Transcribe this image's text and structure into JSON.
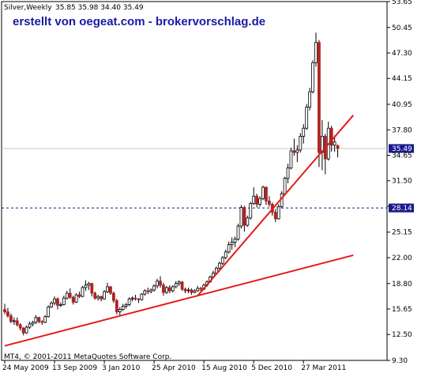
{
  "chart_data": {
    "type": "candlestick",
    "title": "Silver,Weekly",
    "ohlc_readout": "35.85 35.98 34.40 35.49",
    "watermark": "erstellt von oegeat.com - brokervorschlag.de",
    "copyright": "MT4, © 2001-2011 MetaQuotes Software Corp.",
    "y_range": [
      9.3,
      53.65
    ],
    "y_ticks": [
      "53.65",
      "50.45",
      "47.30",
      "44.15",
      "40.95",
      "37.80",
      "34.65",
      "31.50",
      "28.35",
      "25.15",
      "22.00",
      "18.80",
      "15.65",
      "12.50",
      "9.30"
    ],
    "x_ticks": [
      "24 May 2009",
      "13 Sep 2009",
      "3 Jan 2010",
      "25 Apr 2010",
      "15 Aug 2010",
      "5 Dec 2010",
      "27 Mar 2011"
    ],
    "current_price": "35.49",
    "level_line": "28.14",
    "candles": [
      {
        "date": "2009-05-24",
        "o": 15.6,
        "h": 16.3,
        "l": 15.0,
        "c": 15.3
      },
      {
        "date": "2009-05-31",
        "o": 15.3,
        "h": 15.8,
        "l": 14.6,
        "c": 14.8
      },
      {
        "date": "2009-06-07",
        "o": 14.8,
        "h": 15.1,
        "l": 13.9,
        "c": 14.1
      },
      {
        "date": "2009-06-14",
        "o": 14.1,
        "h": 14.6,
        "l": 13.7,
        "c": 14.2
      },
      {
        "date": "2009-06-21",
        "o": 14.2,
        "h": 14.6,
        "l": 13.5,
        "c": 13.7
      },
      {
        "date": "2009-06-28",
        "o": 13.7,
        "h": 13.9,
        "l": 13.0,
        "c": 13.3
      },
      {
        "date": "2009-07-05",
        "o": 13.3,
        "h": 13.4,
        "l": 12.4,
        "c": 12.7
      },
      {
        "date": "2009-07-12",
        "o": 12.7,
        "h": 13.6,
        "l": 12.6,
        "c": 13.4
      },
      {
        "date": "2009-07-19",
        "o": 13.4,
        "h": 14.1,
        "l": 13.2,
        "c": 13.8
      },
      {
        "date": "2009-07-26",
        "o": 13.8,
        "h": 14.2,
        "l": 13.5,
        "c": 14.0
      },
      {
        "date": "2009-08-02",
        "o": 14.0,
        "h": 14.9,
        "l": 13.8,
        "c": 14.6
      },
      {
        "date": "2009-08-09",
        "o": 14.6,
        "h": 14.7,
        "l": 13.9,
        "c": 14.1
      },
      {
        "date": "2009-08-16",
        "o": 14.1,
        "h": 14.3,
        "l": 13.7,
        "c": 14.0
      },
      {
        "date": "2009-08-23",
        "o": 14.0,
        "h": 14.9,
        "l": 13.9,
        "c": 14.7
      },
      {
        "date": "2009-08-30",
        "o": 14.7,
        "h": 16.1,
        "l": 14.6,
        "c": 15.9
      },
      {
        "date": "2009-09-06",
        "o": 15.9,
        "h": 16.6,
        "l": 15.8,
        "c": 16.4
      },
      {
        "date": "2009-09-13",
        "o": 16.4,
        "h": 17.2,
        "l": 16.1,
        "c": 16.9
      },
      {
        "date": "2009-09-20",
        "o": 16.9,
        "h": 17.1,
        "l": 15.6,
        "c": 16.1
      },
      {
        "date": "2009-09-27",
        "o": 16.1,
        "h": 16.5,
        "l": 15.9,
        "c": 16.2
      },
      {
        "date": "2009-10-04",
        "o": 16.2,
        "h": 17.3,
        "l": 16.1,
        "c": 17.0
      },
      {
        "date": "2009-10-11",
        "o": 17.0,
        "h": 17.9,
        "l": 16.8,
        "c": 17.6
      },
      {
        "date": "2009-10-18",
        "o": 17.6,
        "h": 18.2,
        "l": 16.9,
        "c": 17.1
      },
      {
        "date": "2009-10-25",
        "o": 17.1,
        "h": 17.3,
        "l": 16.2,
        "c": 16.5
      },
      {
        "date": "2009-11-01",
        "o": 16.5,
        "h": 17.6,
        "l": 16.4,
        "c": 17.4
      },
      {
        "date": "2009-11-08",
        "o": 17.4,
        "h": 17.8,
        "l": 17.0,
        "c": 17.2
      },
      {
        "date": "2009-11-15",
        "o": 17.2,
        "h": 18.5,
        "l": 17.1,
        "c": 18.3
      },
      {
        "date": "2009-11-22",
        "o": 18.3,
        "h": 19.2,
        "l": 17.9,
        "c": 18.6
      },
      {
        "date": "2009-11-29",
        "o": 18.6,
        "h": 19.0,
        "l": 18.0,
        "c": 18.8
      },
      {
        "date": "2009-12-06",
        "o": 18.8,
        "h": 18.9,
        "l": 17.2,
        "c": 17.6
      },
      {
        "date": "2009-12-13",
        "o": 17.6,
        "h": 17.8,
        "l": 16.8,
        "c": 17.0
      },
      {
        "date": "2009-12-20",
        "o": 17.0,
        "h": 17.4,
        "l": 16.7,
        "c": 17.2
      },
      {
        "date": "2009-12-27",
        "o": 17.2,
        "h": 17.3,
        "l": 16.6,
        "c": 16.9
      },
      {
        "date": "2010-01-03",
        "o": 16.9,
        "h": 18.0,
        "l": 16.8,
        "c": 17.8
      },
      {
        "date": "2010-01-10",
        "o": 17.8,
        "h": 18.9,
        "l": 17.6,
        "c": 18.4
      },
      {
        "date": "2010-01-17",
        "o": 18.4,
        "h": 18.5,
        "l": 17.4,
        "c": 17.6
      },
      {
        "date": "2010-01-24",
        "o": 17.6,
        "h": 17.8,
        "l": 16.4,
        "c": 16.7
      },
      {
        "date": "2010-01-31",
        "o": 16.7,
        "h": 16.9,
        "l": 15.0,
        "c": 15.3
      },
      {
        "date": "2010-02-07",
        "o": 15.3,
        "h": 15.9,
        "l": 14.9,
        "c": 15.6
      },
      {
        "date": "2010-02-14",
        "o": 15.6,
        "h": 16.3,
        "l": 15.4,
        "c": 16.0
      },
      {
        "date": "2010-02-21",
        "o": 16.0,
        "h": 16.4,
        "l": 15.7,
        "c": 16.2
      },
      {
        "date": "2010-02-28",
        "o": 16.2,
        "h": 17.1,
        "l": 16.0,
        "c": 16.9
      },
      {
        "date": "2010-03-07",
        "o": 16.9,
        "h": 17.2,
        "l": 16.6,
        "c": 17.0
      },
      {
        "date": "2010-03-14",
        "o": 17.0,
        "h": 17.4,
        "l": 16.7,
        "c": 16.9
      },
      {
        "date": "2010-03-21",
        "o": 16.9,
        "h": 17.0,
        "l": 16.4,
        "c": 16.8
      },
      {
        "date": "2010-03-28",
        "o": 16.8,
        "h": 17.6,
        "l": 16.7,
        "c": 17.5
      },
      {
        "date": "2010-04-04",
        "o": 17.5,
        "h": 18.1,
        "l": 17.3,
        "c": 17.9
      },
      {
        "date": "2010-04-11",
        "o": 17.9,
        "h": 18.3,
        "l": 17.5,
        "c": 17.8
      },
      {
        "date": "2010-04-18",
        "o": 17.8,
        "h": 18.2,
        "l": 17.6,
        "c": 18.0
      },
      {
        "date": "2010-04-25",
        "o": 18.0,
        "h": 18.7,
        "l": 17.8,
        "c": 18.5
      },
      {
        "date": "2010-05-02",
        "o": 18.5,
        "h": 19.4,
        "l": 18.2,
        "c": 19.1
      },
      {
        "date": "2010-05-09",
        "o": 19.1,
        "h": 19.7,
        "l": 18.3,
        "c": 18.6
      },
      {
        "date": "2010-05-16",
        "o": 18.6,
        "h": 18.9,
        "l": 17.3,
        "c": 17.7
      },
      {
        "date": "2010-05-23",
        "o": 17.7,
        "h": 18.5,
        "l": 17.5,
        "c": 18.3
      },
      {
        "date": "2010-05-30",
        "o": 18.3,
        "h": 18.6,
        "l": 17.6,
        "c": 17.9
      },
      {
        "date": "2010-06-06",
        "o": 17.9,
        "h": 18.6,
        "l": 17.7,
        "c": 18.4
      },
      {
        "date": "2010-06-13",
        "o": 18.4,
        "h": 19.1,
        "l": 18.2,
        "c": 18.8
      },
      {
        "date": "2010-06-20",
        "o": 18.8,
        "h": 19.2,
        "l": 18.5,
        "c": 19.0
      },
      {
        "date": "2010-06-27",
        "o": 19.0,
        "h": 19.1,
        "l": 17.9,
        "c": 18.1
      },
      {
        "date": "2010-07-04",
        "o": 18.1,
        "h": 18.3,
        "l": 17.6,
        "c": 17.9
      },
      {
        "date": "2010-07-11",
        "o": 17.9,
        "h": 18.3,
        "l": 17.6,
        "c": 18.0
      },
      {
        "date": "2010-07-18",
        "o": 18.0,
        "h": 18.2,
        "l": 17.4,
        "c": 17.7
      },
      {
        "date": "2010-07-25",
        "o": 17.7,
        "h": 18.1,
        "l": 17.6,
        "c": 17.9
      },
      {
        "date": "2010-08-01",
        "o": 17.9,
        "h": 18.5,
        "l": 17.8,
        "c": 18.2
      },
      {
        "date": "2010-08-08",
        "o": 18.2,
        "h": 18.4,
        "l": 17.9,
        "c": 18.1
      },
      {
        "date": "2010-08-15",
        "o": 18.1,
        "h": 18.8,
        "l": 18.0,
        "c": 18.6
      },
      {
        "date": "2010-08-22",
        "o": 18.6,
        "h": 19.2,
        "l": 18.4,
        "c": 19.0
      },
      {
        "date": "2010-08-29",
        "o": 19.0,
        "h": 19.8,
        "l": 18.9,
        "c": 19.6
      },
      {
        "date": "2010-09-05",
        "o": 19.6,
        "h": 20.4,
        "l": 19.5,
        "c": 20.1
      },
      {
        "date": "2010-09-12",
        "o": 20.1,
        "h": 20.9,
        "l": 20.0,
        "c": 20.7
      },
      {
        "date": "2010-09-19",
        "o": 20.7,
        "h": 21.5,
        "l": 20.5,
        "c": 21.3
      },
      {
        "date": "2010-09-26",
        "o": 21.3,
        "h": 22.2,
        "l": 21.1,
        "c": 22.0
      },
      {
        "date": "2010-10-03",
        "o": 22.0,
        "h": 23.0,
        "l": 21.8,
        "c": 22.7
      },
      {
        "date": "2010-10-10",
        "o": 22.7,
        "h": 24.0,
        "l": 22.5,
        "c": 23.6
      },
      {
        "date": "2010-10-17",
        "o": 23.6,
        "h": 24.5,
        "l": 23.0,
        "c": 23.9
      },
      {
        "date": "2010-10-24",
        "o": 23.9,
        "h": 24.6,
        "l": 23.3,
        "c": 24.3
      },
      {
        "date": "2010-10-31",
        "o": 24.3,
        "h": 26.2,
        "l": 24.1,
        "c": 25.9
      },
      {
        "date": "2010-11-07",
        "o": 25.9,
        "h": 28.5,
        "l": 25.6,
        "c": 28.2
      },
      {
        "date": "2010-11-14",
        "o": 28.2,
        "h": 28.4,
        "l": 25.2,
        "c": 26.0
      },
      {
        "date": "2010-11-21",
        "o": 26.0,
        "h": 27.2,
        "l": 25.8,
        "c": 26.9
      },
      {
        "date": "2010-11-28",
        "o": 26.9,
        "h": 28.9,
        "l": 26.7,
        "c": 28.7
      },
      {
        "date": "2010-12-05",
        "o": 28.7,
        "h": 30.7,
        "l": 28.5,
        "c": 29.6
      },
      {
        "date": "2010-12-12",
        "o": 29.6,
        "h": 29.9,
        "l": 28.2,
        "c": 28.6
      },
      {
        "date": "2010-12-19",
        "o": 28.6,
        "h": 29.6,
        "l": 28.3,
        "c": 29.3
      },
      {
        "date": "2010-12-26",
        "o": 29.3,
        "h": 30.9,
        "l": 29.1,
        "c": 30.7
      },
      {
        "date": "2011-01-02",
        "o": 30.7,
        "h": 30.8,
        "l": 28.5,
        "c": 29.0
      },
      {
        "date": "2011-01-09",
        "o": 29.0,
        "h": 29.6,
        "l": 28.3,
        "c": 28.6
      },
      {
        "date": "2011-01-16",
        "o": 28.6,
        "h": 28.8,
        "l": 27.2,
        "c": 27.6
      },
      {
        "date": "2011-01-23",
        "o": 27.6,
        "h": 28.0,
        "l": 26.4,
        "c": 26.8
      },
      {
        "date": "2011-01-30",
        "o": 26.8,
        "h": 28.6,
        "l": 26.7,
        "c": 28.3
      },
      {
        "date": "2011-02-06",
        "o": 28.3,
        "h": 30.2,
        "l": 28.1,
        "c": 29.9
      },
      {
        "date": "2011-02-13",
        "o": 29.9,
        "h": 32.0,
        "l": 29.7,
        "c": 31.8
      },
      {
        "date": "2011-02-20",
        "o": 31.8,
        "h": 33.6,
        "l": 31.2,
        "c": 33.1
      },
      {
        "date": "2011-02-27",
        "o": 33.1,
        "h": 35.6,
        "l": 32.9,
        "c": 35.2
      },
      {
        "date": "2011-03-06",
        "o": 35.2,
        "h": 36.7,
        "l": 34.6,
        "c": 35.0
      },
      {
        "date": "2011-03-13",
        "o": 35.0,
        "h": 35.9,
        "l": 33.8,
        "c": 35.3
      },
      {
        "date": "2011-03-20",
        "o": 35.3,
        "h": 37.4,
        "l": 35.0,
        "c": 37.0
      },
      {
        "date": "2011-03-27",
        "o": 37.0,
        "h": 38.5,
        "l": 36.1,
        "c": 38.0
      },
      {
        "date": "2011-04-03",
        "o": 38.0,
        "h": 41.0,
        "l": 37.8,
        "c": 40.6
      },
      {
        "date": "2011-04-10",
        "o": 40.6,
        "h": 43.0,
        "l": 40.2,
        "c": 42.5
      },
      {
        "date": "2011-04-17",
        "o": 42.5,
        "h": 46.4,
        "l": 42.3,
        "c": 46.1
      },
      {
        "date": "2011-04-24",
        "o": 46.1,
        "h": 49.8,
        "l": 45.6,
        "c": 48.6
      },
      {
        "date": "2011-05-01",
        "o": 48.6,
        "h": 48.9,
        "l": 33.2,
        "c": 35.0
      },
      {
        "date": "2011-05-08",
        "o": 35.0,
        "h": 39.0,
        "l": 32.8,
        "c": 37.0
      },
      {
        "date": "2011-05-15",
        "o": 37.0,
        "h": 37.3,
        "l": 32.3,
        "c": 34.2
      },
      {
        "date": "2011-05-22",
        "o": 34.2,
        "h": 38.8,
        "l": 34.0,
        "c": 38.0
      },
      {
        "date": "2011-05-29",
        "o": 38.0,
        "h": 38.3,
        "l": 35.1,
        "c": 35.9
      },
      {
        "date": "2011-06-05",
        "o": 35.9,
        "h": 37.1,
        "l": 35.1,
        "c": 36.3
      },
      {
        "date": "2011-06-12",
        "o": 35.85,
        "h": 35.98,
        "l": 34.4,
        "c": 35.49
      }
    ],
    "trendlines": [
      {
        "from": {
          "date": "2009-05-24",
          "price": 11.1
        },
        "to": {
          "date": "2011-07-17",
          "price": 22.3
        }
      },
      {
        "from": {
          "date": "2010-08-01",
          "price": 17.3
        },
        "to": {
          "date": "2011-07-17",
          "price": 39.6
        }
      }
    ],
    "colors": {
      "bull": "#ffffff",
      "bear": "#b22222",
      "wick": "#000000",
      "trendline": "#e41b17",
      "level": "#1a1a8a",
      "tag": "#1a1a8a",
      "watermark": "#1a1aa8"
    }
  }
}
